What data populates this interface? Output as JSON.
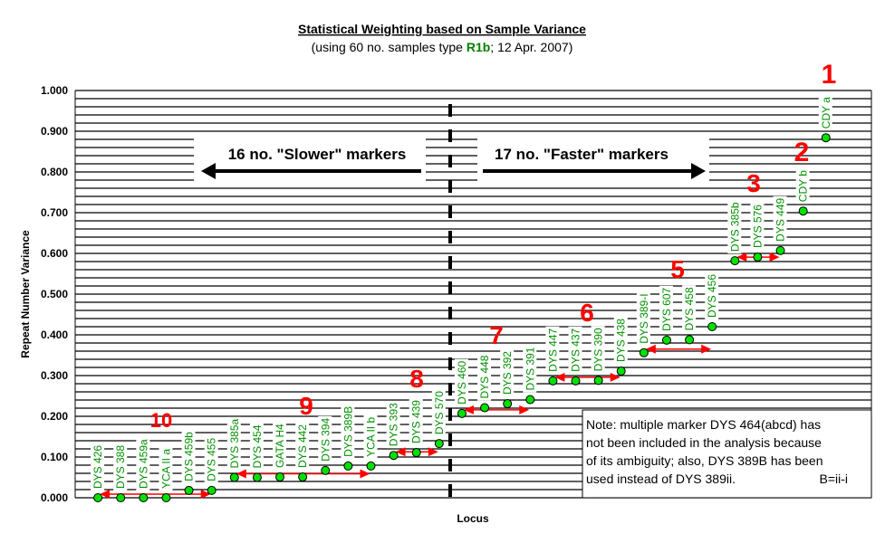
{
  "chart_data": {
    "type": "scatter",
    "title": "Statistical Weighting based on Sample Variance",
    "subtitle_parts": [
      "(using 60 no. samples type ",
      "R1b",
      "; 12 Apr. 2007)"
    ],
    "xlabel": "Locus",
    "ylabel": "Repeat Number Variance",
    "ylim": [
      0,
      1
    ],
    "yticks": [
      "0.000",
      "0.100",
      "0.200",
      "0.300",
      "0.400",
      "0.500",
      "0.600",
      "0.700",
      "0.800",
      "0.900",
      "1.000"
    ],
    "grid": "horizontal every 0.02",
    "categories": [
      "DYS 426",
      "DYS 388",
      "DYS 459a",
      "YCA II a",
      "DYS 459b",
      "DYS 455",
      "DYS 385a",
      "DYS 454",
      "GATA H4",
      "DYS 442",
      "DYS 394",
      "DYS 389B",
      "YCA II b",
      "DYS 393",
      "DYS 439",
      "DYS 570",
      "DYS 460",
      "DYS 448",
      "DYS 392",
      "DYS 391",
      "DYS 447",
      "DYS 437",
      "DYS 390",
      "DYS 438",
      "DYS 389-I",
      "DYS 607",
      "DYS 458",
      "DYS 456",
      "DYS 385b",
      "DYS 576",
      "DYS 449",
      "CDY b",
      "CDY a"
    ],
    "values": [
      0.0,
      0.0,
      0.0,
      0.0,
      0.018,
      0.018,
      0.05,
      0.05,
      0.051,
      0.051,
      0.067,
      0.078,
      0.078,
      0.104,
      0.111,
      0.133,
      0.207,
      0.221,
      0.231,
      0.241,
      0.287,
      0.287,
      0.288,
      0.311,
      0.356,
      0.387,
      0.388,
      0.42,
      0.582,
      0.591,
      0.607,
      0.704,
      0.884
    ],
    "groups": [
      {
        "label": "10",
        "from": 0,
        "to": 5
      },
      {
        "label": "9",
        "from": 6,
        "to": 12
      },
      {
        "label": "8",
        "from": 13,
        "to": 15
      },
      {
        "label": "7",
        "from": 16,
        "to": 19
      },
      {
        "label": "6",
        "from": 20,
        "to": 23
      },
      {
        "label": "5",
        "from": 24,
        "to": 27
      },
      {
        "label": "3",
        "from": 28,
        "to": 30
      },
      {
        "label": "2",
        "from": 31,
        "to": 31
      },
      {
        "label": "1",
        "from": 32,
        "to": 32
      }
    ],
    "slower_label": "16 no. \"Slower\" markers",
    "faster_label": "17 no. \"Faster\" markers",
    "note_lines": [
      "Note: multiple marker DYS 464(abcd) has",
      "not been included in the analysis because",
      "of its ambiguity; also, DYS 389B has been",
      "used instead of DYS 389ii."
    ],
    "note_suffix": "B=ii-i",
    "colors": {
      "marker": "#00e000",
      "label": "#009000",
      "annotation": "#ff0000",
      "highlight": "#008000"
    }
  }
}
